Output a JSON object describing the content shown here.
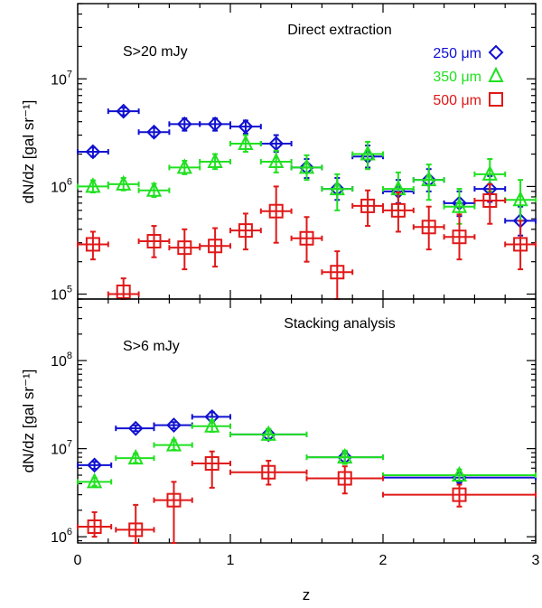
{
  "chart_data": [
    {
      "type": "scatter",
      "panel": "top",
      "title": "Direct extraction",
      "annotation": "S>20 mJy",
      "xlabel": "z",
      "ylabel": "dN/dz [gal sr⁻¹]",
      "yscale": "log",
      "xlim": [
        0,
        3
      ],
      "ylim": [
        90000,
        50000000
      ],
      "ytick_labels": [
        {
          "value": 100000,
          "base": "10",
          "exp": "5"
        },
        {
          "value": 1000000,
          "base": "10",
          "exp": "6"
        },
        {
          "value": 10000000,
          "base": "10",
          "exp": "7"
        }
      ],
      "legend_position": "top-right",
      "series": [
        {
          "name": "250 μm",
          "color": "#1010d0",
          "marker": "diamond",
          "points": [
            {
              "x": 0.1,
              "y": 2100000,
              "xerr": 0.1,
              "ylo": 1900000,
              "yhi": 2300000
            },
            {
              "x": 0.3,
              "y": 5000000,
              "xerr": 0.1,
              "ylo": 4600000,
              "yhi": 5400000
            },
            {
              "x": 0.5,
              "y": 3200000,
              "xerr": 0.1,
              "ylo": 2900000,
              "yhi": 3500000
            },
            {
              "x": 0.7,
              "y": 3800000,
              "xerr": 0.1,
              "ylo": 3300000,
              "yhi": 4300000
            },
            {
              "x": 0.9,
              "y": 3800000,
              "xerr": 0.1,
              "ylo": 3300000,
              "yhi": 4300000
            },
            {
              "x": 1.1,
              "y": 3600000,
              "xerr": 0.1,
              "ylo": 3100000,
              "yhi": 4100000
            },
            {
              "x": 1.3,
              "y": 2500000,
              "xerr": 0.1,
              "ylo": 2100000,
              "yhi": 3000000
            },
            {
              "x": 1.5,
              "y": 1500000,
              "xerr": 0.1,
              "ylo": 1200000,
              "yhi": 1800000
            },
            {
              "x": 1.7,
              "y": 950000,
              "xerr": 0.1,
              "ylo": 750000,
              "yhi": 1200000
            },
            {
              "x": 1.9,
              "y": 1900000,
              "xerr": 0.1,
              "ylo": 1500000,
              "yhi": 2400000
            },
            {
              "x": 2.1,
              "y": 900000,
              "xerr": 0.1,
              "ylo": 700000,
              "yhi": 1150000
            },
            {
              "x": 2.3,
              "y": 1150000,
              "xerr": 0.1,
              "ylo": 900000,
              "yhi": 1450000
            },
            {
              "x": 2.5,
              "y": 700000,
              "xerr": 0.1,
              "ylo": 530000,
              "yhi": 900000
            },
            {
              "x": 2.7,
              "y": 950000,
              "xerr": 0.1,
              "ylo": 720000,
              "yhi": 1250000
            },
            {
              "x": 2.9,
              "y": 480000,
              "xerr": 0.1,
              "ylo": 350000,
              "yhi": 650000
            }
          ]
        },
        {
          "name": "350 μm",
          "color": "#20e020",
          "marker": "triangle",
          "points": [
            {
              "x": 0.1,
              "y": 1000000,
              "xerr": 0.1,
              "ylo": 880000,
              "yhi": 1140000
            },
            {
              "x": 0.3,
              "y": 1050000,
              "xerr": 0.1,
              "ylo": 920000,
              "yhi": 1200000
            },
            {
              "x": 0.5,
              "y": 920000,
              "xerr": 0.1,
              "ylo": 800000,
              "yhi": 1060000
            },
            {
              "x": 0.7,
              "y": 1500000,
              "xerr": 0.1,
              "ylo": 1300000,
              "yhi": 1730000
            },
            {
              "x": 0.9,
              "y": 1700000,
              "xerr": 0.1,
              "ylo": 1450000,
              "yhi": 2000000
            },
            {
              "x": 1.1,
              "y": 2500000,
              "xerr": 0.1,
              "ylo": 2100000,
              "yhi": 3000000
            },
            {
              "x": 1.3,
              "y": 1700000,
              "xerr": 0.1,
              "ylo": 1350000,
              "yhi": 2150000
            },
            {
              "x": 1.5,
              "y": 1500000,
              "xerr": 0.1,
              "ylo": 1150000,
              "yhi": 1950000
            },
            {
              "x": 1.7,
              "y": 950000,
              "xerr": 0.1,
              "ylo": 600000,
              "yhi": 1300000
            },
            {
              "x": 1.9,
              "y": 2000000,
              "xerr": 0.1,
              "ylo": 1450000,
              "yhi": 2600000
            },
            {
              "x": 2.1,
              "y": 950000,
              "xerr": 0.1,
              "ylo": 600000,
              "yhi": 1350000
            },
            {
              "x": 2.3,
              "y": 1150000,
              "xerr": 0.1,
              "ylo": 750000,
              "yhi": 1600000
            },
            {
              "x": 2.5,
              "y": 650000,
              "xerr": 0.1,
              "ylo": 450000,
              "yhi": 950000
            },
            {
              "x": 2.7,
              "y": 1300000,
              "xerr": 0.1,
              "ylo": 900000,
              "yhi": 1800000
            },
            {
              "x": 2.9,
              "y": 750000,
              "xerr": 0.1,
              "ylo": 480000,
              "yhi": 1150000
            }
          ]
        },
        {
          "name": "500 μm",
          "color": "#e01818",
          "marker": "square",
          "points": [
            {
              "x": 0.1,
              "y": 290000,
              "xerr": 0.1,
              "ylo": 210000,
              "yhi": 380000
            },
            {
              "x": 0.3,
              "y": 100000,
              "xerr": 0.1,
              "ylo": 70000,
              "yhi": 140000
            },
            {
              "x": 0.5,
              "y": 310000,
              "xerr": 0.1,
              "ylo": 220000,
              "yhi": 430000
            },
            {
              "x": 0.7,
              "y": 270000,
              "xerr": 0.1,
              "ylo": 170000,
              "yhi": 400000
            },
            {
              "x": 0.9,
              "y": 280000,
              "xerr": 0.1,
              "ylo": 180000,
              "yhi": 410000
            },
            {
              "x": 1.1,
              "y": 390000,
              "xerr": 0.1,
              "ylo": 260000,
              "yhi": 560000
            },
            {
              "x": 1.3,
              "y": 590000,
              "xerr": 0.1,
              "ylo": 300000,
              "yhi": 1000000
            },
            {
              "x": 1.5,
              "y": 330000,
              "xerr": 0.1,
              "ylo": 200000,
              "yhi": 520000
            },
            {
              "x": 1.7,
              "y": 160000,
              "xerr": 0.1,
              "ylo": 80000,
              "yhi": 250000
            },
            {
              "x": 1.9,
              "y": 660000,
              "xerr": 0.1,
              "ylo": 430000,
              "yhi": 920000
            },
            {
              "x": 2.1,
              "y": 600000,
              "xerr": 0.1,
              "ylo": 380000,
              "yhi": 880000
            },
            {
              "x": 2.3,
              "y": 420000,
              "xerr": 0.1,
              "ylo": 260000,
              "yhi": 650000
            },
            {
              "x": 2.5,
              "y": 340000,
              "xerr": 0.1,
              "ylo": 210000,
              "yhi": 550000
            },
            {
              "x": 2.7,
              "y": 740000,
              "xerr": 0.1,
              "ylo": 450000,
              "yhi": 1050000
            },
            {
              "x": 2.9,
              "y": 290000,
              "xerr": 0.1,
              "ylo": 170000,
              "yhi": 480000
            }
          ]
        }
      ]
    },
    {
      "type": "scatter",
      "panel": "bottom",
      "title": "Stacking analysis",
      "annotation": "S>6 mJy",
      "xlabel": "z",
      "ylabel": "dN/dz [gal sr⁻¹]",
      "yscale": "log",
      "xlim": [
        0,
        3
      ],
      "ylim": [
        850000,
        500000000
      ],
      "xtick_labels": [
        "0",
        "1",
        "2",
        "3"
      ],
      "ytick_labels": [
        {
          "value": 1000000,
          "base": "10",
          "exp": "6"
        },
        {
          "value": 10000000,
          "base": "10",
          "exp": "7"
        },
        {
          "value": 100000000,
          "base": "10",
          "exp": "8"
        }
      ],
      "series": [
        {
          "name": "250 μm",
          "color": "#1010d0",
          "marker": "diamond",
          "points": [
            {
              "x": 0.11,
              "y": 6500000,
              "xlo": 0.0,
              "xhi": 0.22,
              "ylo": 5900000,
              "yhi": 7100000
            },
            {
              "x": 0.38,
              "y": 17000000,
              "xlo": 0.25,
              "xhi": 0.5,
              "ylo": 15800000,
              "yhi": 18400000
            },
            {
              "x": 0.63,
              "y": 18500000,
              "xlo": 0.5,
              "xhi": 0.75,
              "ylo": 17000000,
              "yhi": 20000000
            },
            {
              "x": 0.88,
              "y": 23000000,
              "xlo": 0.75,
              "xhi": 1.0,
              "ylo": 20500000,
              "yhi": 26000000
            },
            {
              "x": 1.25,
              "y": 14500000,
              "xlo": 1.0,
              "xhi": 1.5,
              "ylo": 13000000,
              "yhi": 16500000
            },
            {
              "x": 1.75,
              "y": 8000000,
              "xlo": 1.5,
              "xhi": 2.0,
              "ylo": 6900000,
              "yhi": 9200000
            },
            {
              "x": 2.5,
              "y": 4700000,
              "xlo": 2.0,
              "xhi": 3.0,
              "ylo": 4100000,
              "yhi": 5400000
            }
          ]
        },
        {
          "name": "350 μm",
          "color": "#20e020",
          "marker": "triangle",
          "points": [
            {
              "x": 0.11,
              "y": 4200000,
              "xlo": 0.0,
              "xhi": 0.22,
              "ylo": 3800000,
              "yhi": 4650000
            },
            {
              "x": 0.38,
              "y": 7800000,
              "xlo": 0.25,
              "xhi": 0.5,
              "ylo": 6900000,
              "yhi": 8800000
            },
            {
              "x": 0.63,
              "y": 11000000,
              "xlo": 0.5,
              "xhi": 0.75,
              "ylo": 9700000,
              "yhi": 12500000
            },
            {
              "x": 0.88,
              "y": 18000000,
              "xlo": 0.75,
              "xhi": 1.0,
              "ylo": 15500000,
              "yhi": 21000000
            },
            {
              "x": 1.25,
              "y": 14500000,
              "xlo": 1.0,
              "xhi": 1.5,
              "ylo": 12500000,
              "yhi": 16800000
            },
            {
              "x": 1.75,
              "y": 8000000,
              "xlo": 1.5,
              "xhi": 2.0,
              "ylo": 6700000,
              "yhi": 9500000
            },
            {
              "x": 2.5,
              "y": 5000000,
              "xlo": 2.0,
              "xhi": 3.0,
              "ylo": 4300000,
              "yhi": 5800000
            }
          ]
        },
        {
          "name": "500 μm",
          "color": "#e01818",
          "marker": "square",
          "points": [
            {
              "x": 0.11,
              "y": 1300000,
              "xlo": 0.0,
              "xhi": 0.22,
              "ylo": 1000000,
              "yhi": 1900000
            },
            {
              "x": 0.38,
              "y": 1200000,
              "xlo": 0.25,
              "xhi": 0.5,
              "ylo": 850000,
              "yhi": 2300000
            },
            {
              "x": 0.63,
              "y": 2600000,
              "xlo": 0.5,
              "xhi": 0.75,
              "ylo": 850000,
              "yhi": 4200000
            },
            {
              "x": 0.88,
              "y": 6800000,
              "xlo": 0.75,
              "xhi": 1.0,
              "ylo": 3600000,
              "yhi": 9300000
            },
            {
              "x": 1.25,
              "y": 5400000,
              "xlo": 1.0,
              "xhi": 1.5,
              "ylo": 3900000,
              "yhi": 7300000
            },
            {
              "x": 1.75,
              "y": 4600000,
              "xlo": 1.5,
              "xhi": 2.0,
              "ylo": 3100000,
              "yhi": 6300000
            },
            {
              "x": 2.5,
              "y": 3000000,
              "xlo": 2.0,
              "xhi": 3.0,
              "ylo": 2200000,
              "yhi": 3900000
            }
          ]
        }
      ]
    }
  ]
}
